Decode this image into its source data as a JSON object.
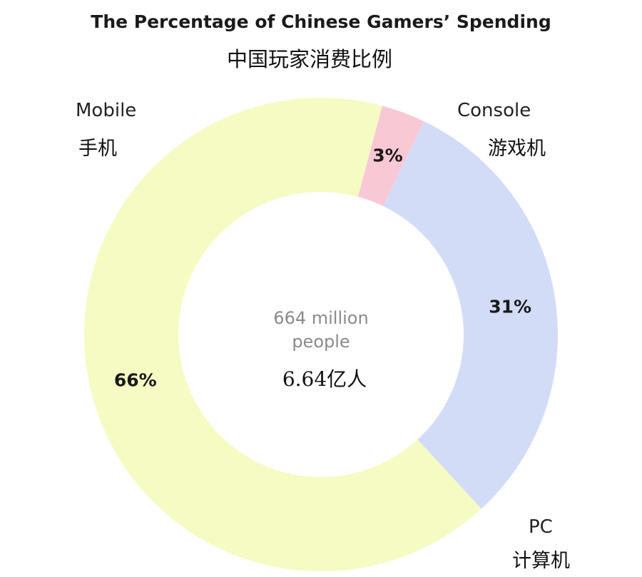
{
  "title": "The Percentage of Chinese Gamers’ Spending",
  "subtitle": "中国玩家消费比例",
  "center": {
    "line1": "664 million",
    "line2": "people",
    "zh": "6.64亿人"
  },
  "labels": {
    "mobile_en": "Mobile",
    "mobile_zh": "手机",
    "console_en": "Console",
    "console_zh": "游戏机",
    "pc_en": "PC",
    "pc_zh": "计算机"
  },
  "chart_data": {
    "type": "pie",
    "title": "The Percentage of Chinese Gamers’ Spending",
    "subtitle": "中国玩家消费比例",
    "categories": [
      "Console",
      "PC",
      "Mobile"
    ],
    "values": [
      3,
      31,
      66
    ],
    "data_labels": [
      "3%",
      "31%",
      "66%"
    ],
    "colors": [
      "#f8c8d4",
      "#d2dcf6",
      "#f6fac3"
    ],
    "donut": true,
    "center_label": "664 million people"
  }
}
